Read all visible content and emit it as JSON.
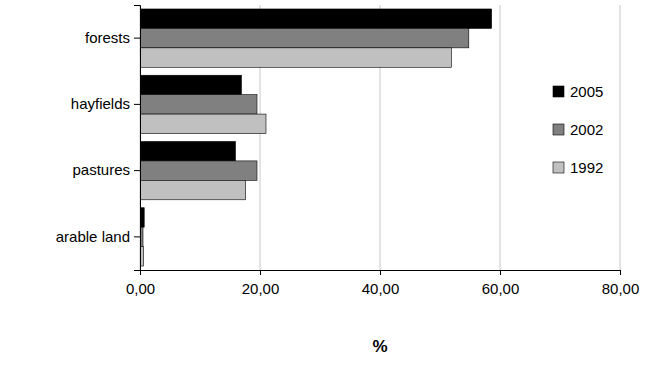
{
  "chart_data": {
    "type": "bar",
    "orientation": "horizontal",
    "categories": [
      "forests",
      "hayfields",
      "pastures",
      "arable land"
    ],
    "series": [
      {
        "name": "2005",
        "color": "#000000",
        "values": [
          58.6,
          16.9,
          15.9,
          0.7
        ]
      },
      {
        "name": "2002",
        "color": "#808080",
        "values": [
          54.8,
          19.5,
          19.5,
          0.5
        ]
      },
      {
        "name": "1992",
        "color": "#c0c0c0",
        "values": [
          51.9,
          21.0,
          17.6,
          0.6
        ]
      }
    ],
    "x_label": "%",
    "xlim": [
      0,
      80
    ],
    "xticks": [
      {
        "value": 0,
        "label": "0,00"
      },
      {
        "value": 20,
        "label": "20,00"
      },
      {
        "value": 40,
        "label": "40,00"
      },
      {
        "value": 60,
        "label": "60,00"
      },
      {
        "value": 80,
        "label": "80,00"
      }
    ],
    "grid": true,
    "legend": "right"
  }
}
